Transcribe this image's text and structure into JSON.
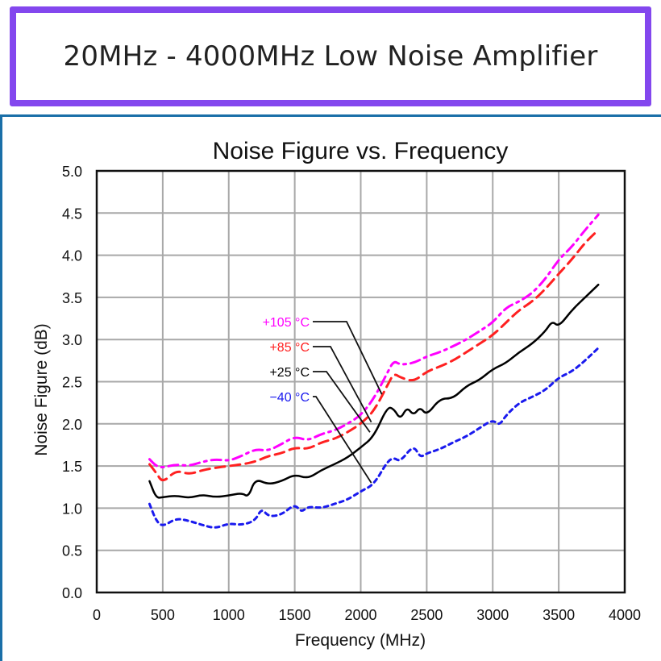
{
  "header": {
    "title": "20MHz - 4000MHz Low Noise Amplifier"
  },
  "colors": {
    "header_border": "#8347ee",
    "panel_border": "#1a6fa8"
  },
  "chart_data": {
    "type": "line",
    "title": "Noise Figure vs. Frequency",
    "xlabel": "Frequency (MHz)",
    "ylabel": "Noise Figure (dB)",
    "xlim": [
      0,
      4000
    ],
    "ylim": [
      0.0,
      5.0
    ],
    "xticks": [
      "0",
      "500",
      "1000",
      "1500",
      "2000",
      "2500",
      "3000",
      "3500",
      "4000"
    ],
    "xtick_values": [
      0,
      500,
      1000,
      1500,
      2000,
      2500,
      3000,
      3500,
      4000
    ],
    "yticks": [
      "0.0",
      "0.5",
      "1.0",
      "1.5",
      "2.0",
      "2.5",
      "3.0",
      "3.5",
      "4.0",
      "4.5",
      "5.0"
    ],
    "ytick_values": [
      0,
      0.5,
      1.0,
      1.5,
      2.0,
      2.5,
      3.0,
      3.5,
      4.0,
      4.5,
      5.0
    ],
    "grid": true,
    "series": [
      {
        "name": "+105 °C",
        "color": "#ff00ff",
        "dash": "dashdot",
        "x": [
          400,
          450,
          500,
          600,
          700,
          800,
          900,
          1000,
          1100,
          1200,
          1300,
          1400,
          1500,
          1600,
          1700,
          1800,
          1900,
          2000,
          2100,
          2200,
          2250,
          2300,
          2400,
          2500,
          2600,
          2700,
          2800,
          2900,
          3000,
          3100,
          3200,
          3300,
          3400,
          3500,
          3600,
          3700,
          3800
        ],
        "y": [
          1.58,
          1.5,
          1.48,
          1.52,
          1.5,
          1.55,
          1.58,
          1.56,
          1.62,
          1.7,
          1.68,
          1.76,
          1.85,
          1.8,
          1.88,
          1.92,
          2.0,
          2.1,
          2.3,
          2.6,
          2.75,
          2.7,
          2.72,
          2.8,
          2.85,
          2.92,
          3.0,
          3.1,
          3.2,
          3.38,
          3.45,
          3.55,
          3.72,
          3.95,
          4.1,
          4.3,
          4.48
        ]
      },
      {
        "name": "+85 °C",
        "color": "#ff2020",
        "dash": "dash",
        "x": [
          400,
          450,
          500,
          600,
          700,
          800,
          900,
          1000,
          1100,
          1200,
          1300,
          1400,
          1500,
          1600,
          1700,
          1800,
          1900,
          2000,
          2100,
          2200,
          2250,
          2300,
          2400,
          2500,
          2600,
          2700,
          2800,
          2900,
          3000,
          3100,
          3200,
          3300,
          3400,
          3500,
          3600,
          3700,
          3800
        ],
        "y": [
          1.52,
          1.42,
          1.3,
          1.45,
          1.4,
          1.45,
          1.48,
          1.5,
          1.52,
          1.55,
          1.62,
          1.65,
          1.72,
          1.7,
          1.78,
          1.82,
          1.9,
          2.0,
          2.15,
          2.45,
          2.6,
          2.55,
          2.5,
          2.62,
          2.68,
          2.75,
          2.85,
          2.95,
          3.05,
          3.2,
          3.35,
          3.45,
          3.6,
          3.78,
          3.95,
          4.15,
          4.3
        ]
      },
      {
        "name": "+25 °C",
        "color": "#000000",
        "dash": "solid",
        "x": [
          400,
          450,
          500,
          600,
          700,
          800,
          900,
          1000,
          1100,
          1150,
          1200,
          1300,
          1400,
          1500,
          1600,
          1700,
          1800,
          1900,
          2000,
          2100,
          2200,
          2250,
          2300,
          2350,
          2400,
          2450,
          2500,
          2600,
          2700,
          2800,
          2900,
          3000,
          3100,
          3200,
          3300,
          3400,
          3450,
          3500,
          3600,
          3700,
          3800
        ],
        "y": [
          1.32,
          1.12,
          1.13,
          1.15,
          1.12,
          1.16,
          1.13,
          1.15,
          1.18,
          1.13,
          1.35,
          1.28,
          1.32,
          1.4,
          1.35,
          1.45,
          1.52,
          1.6,
          1.72,
          1.85,
          2.2,
          2.18,
          2.05,
          2.2,
          2.1,
          2.2,
          2.1,
          2.3,
          2.3,
          2.45,
          2.52,
          2.65,
          2.72,
          2.85,
          2.95,
          3.1,
          3.22,
          3.15,
          3.35,
          3.5,
          3.65
        ]
      },
      {
        "name": "-40 °C",
        "color": "#1a1aee",
        "dash": "dot",
        "x": [
          400,
          450,
          500,
          600,
          700,
          800,
          900,
          1000,
          1100,
          1200,
          1250,
          1300,
          1400,
          1500,
          1550,
          1600,
          1700,
          1800,
          1900,
          2000,
          2100,
          2200,
          2250,
          2300,
          2400,
          2450,
          2500,
          2600,
          2700,
          2800,
          2900,
          3000,
          3050,
          3100,
          3200,
          3300,
          3400,
          3500,
          3600,
          3700,
          3800
        ],
        "y": [
          1.05,
          0.85,
          0.78,
          0.88,
          0.85,
          0.8,
          0.76,
          0.82,
          0.8,
          0.85,
          1.0,
          0.9,
          0.92,
          1.05,
          0.95,
          1.02,
          1.0,
          1.05,
          1.1,
          1.2,
          1.28,
          1.55,
          1.6,
          1.55,
          1.75,
          1.6,
          1.65,
          1.7,
          1.78,
          1.85,
          1.95,
          2.05,
          1.98,
          2.1,
          2.25,
          2.32,
          2.4,
          2.55,
          2.62,
          2.75,
          2.9
        ]
      }
    ],
    "legend": {
      "placement": "center-left",
      "entries": [
        {
          "label": "+105 °C",
          "color": "#ff00ff",
          "point_x": 2160,
          "point_y": 2.35
        },
        {
          "label": "+85 °C",
          "color": "#ff2020",
          "point_x": 2080,
          "point_y": 2.02
        },
        {
          "label": "+25 °C",
          "color": "#000000",
          "point_x": 2070,
          "point_y": 1.9
        },
        {
          "label": "-40 °C",
          "color": "#1a1aee",
          "point_x": 2080,
          "point_y": 1.3
        }
      ],
      "display_labels": [
        "+105 °C",
        "+85 °C",
        "+25 °C",
        "−40 °C"
      ]
    }
  }
}
